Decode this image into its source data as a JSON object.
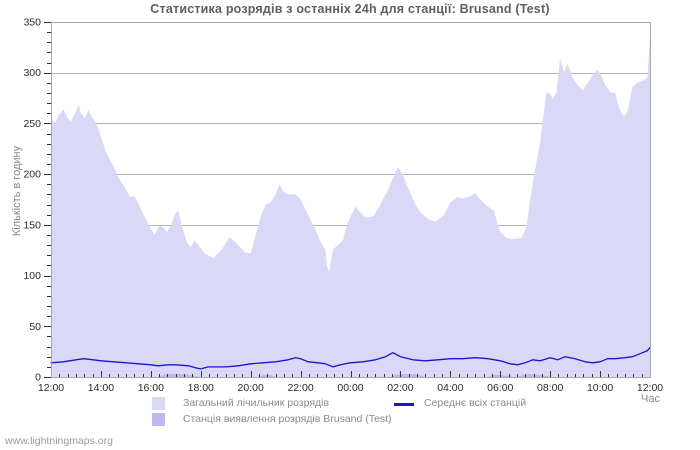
{
  "page": {
    "watermark": "www.lightningmaps.org"
  },
  "chart_data": {
    "type": "area",
    "title": "Статистика розрядів з останніх 24h для станції: Brusand (Test)",
    "xlabel": "Час",
    "ylabel": "Кількість в годину",
    "ylim": [
      0,
      350
    ],
    "xlim_hours": [
      0,
      24
    ],
    "x_unit": "hours since 12:00 (axis spans 24 h, 12:00 to 12:00)",
    "yticks": [
      0,
      50,
      100,
      150,
      200,
      250,
      300,
      350
    ],
    "xticks": [
      "12:00",
      "14:00",
      "16:00",
      "18:00",
      "20:00",
      "22:00",
      "00:00",
      "02:00",
      "04:00",
      "06:00",
      "08:00",
      "10:00",
      "12:00"
    ],
    "grid": true,
    "legend_position": "bottom",
    "colors": {
      "grid": "#b4b4b4",
      "border": "#a9a9a9",
      "tick": "#333333",
      "tick_label": "#2b2b2b"
    },
    "series": [
      {
        "name": "Загальний лічильник розрядів",
        "type": "area",
        "color": "#d9d9f7",
        "points": [
          [
            0,
            256
          ],
          [
            0.15,
            250
          ],
          [
            0.3,
            258
          ],
          [
            0.5,
            264
          ],
          [
            0.65,
            256
          ],
          [
            0.8,
            252
          ],
          [
            1.0,
            262
          ],
          [
            1.1,
            269
          ],
          [
            1.2,
            260
          ],
          [
            1.35,
            255
          ],
          [
            1.5,
            263
          ],
          [
            1.65,
            256
          ],
          [
            1.8,
            251
          ],
          [
            2.0,
            237
          ],
          [
            2.2,
            222
          ],
          [
            2.5,
            208
          ],
          [
            2.75,
            195
          ],
          [
            3.0,
            185
          ],
          [
            3.15,
            178
          ],
          [
            3.35,
            178
          ],
          [
            3.5,
            171
          ],
          [
            3.75,
            158
          ],
          [
            4.0,
            146
          ],
          [
            4.15,
            140
          ],
          [
            4.35,
            150
          ],
          [
            4.5,
            147
          ],
          [
            4.65,
            143
          ],
          [
            4.85,
            152
          ],
          [
            5.0,
            162
          ],
          [
            5.1,
            164
          ],
          [
            5.25,
            148
          ],
          [
            5.45,
            133
          ],
          [
            5.6,
            128
          ],
          [
            5.75,
            135
          ],
          [
            5.9,
            130
          ],
          [
            6.15,
            122
          ],
          [
            6.5,
            117
          ],
          [
            6.85,
            126
          ],
          [
            7.15,
            138
          ],
          [
            7.35,
            134
          ],
          [
            7.5,
            130
          ],
          [
            7.75,
            123
          ],
          [
            8.0,
            122
          ],
          [
            8.2,
            140
          ],
          [
            8.4,
            158
          ],
          [
            8.6,
            170
          ],
          [
            8.8,
            172
          ],
          [
            9.0,
            180
          ],
          [
            9.15,
            190
          ],
          [
            9.3,
            183
          ],
          [
            9.5,
            180
          ],
          [
            9.8,
            180
          ],
          [
            10.0,
            175
          ],
          [
            10.2,
            165
          ],
          [
            10.4,
            155
          ],
          [
            10.6,
            145
          ],
          [
            10.8,
            133
          ],
          [
            11.0,
            125
          ],
          [
            11.05,
            110
          ],
          [
            11.15,
            104
          ],
          [
            11.3,
            126
          ],
          [
            11.5,
            130
          ],
          [
            11.7,
            135
          ],
          [
            11.85,
            150
          ],
          [
            12.0,
            158
          ],
          [
            12.2,
            168
          ],
          [
            12.4,
            162
          ],
          [
            12.6,
            157
          ],
          [
            12.9,
            158
          ],
          [
            13.1,
            166
          ],
          [
            13.5,
            184
          ],
          [
            13.7,
            196
          ],
          [
            13.9,
            207
          ],
          [
            14.1,
            199
          ],
          [
            14.35,
            184
          ],
          [
            14.6,
            170
          ],
          [
            14.85,
            161
          ],
          [
            15.1,
            156
          ],
          [
            15.4,
            153
          ],
          [
            15.75,
            160
          ],
          [
            16.0,
            172
          ],
          [
            16.25,
            177
          ],
          [
            16.5,
            176
          ],
          [
            16.75,
            178
          ],
          [
            17.0,
            181
          ],
          [
            17.2,
            175
          ],
          [
            17.5,
            168
          ],
          [
            17.75,
            164
          ],
          [
            17.9,
            150
          ],
          [
            18.0,
            143
          ],
          [
            18.25,
            137
          ],
          [
            18.5,
            136
          ],
          [
            18.85,
            137
          ],
          [
            19.05,
            148
          ],
          [
            19.2,
            175
          ],
          [
            19.4,
            205
          ],
          [
            19.6,
            232
          ],
          [
            19.85,
            281
          ],
          [
            20.0,
            279
          ],
          [
            20.1,
            274
          ],
          [
            20.25,
            280
          ],
          [
            20.4,
            314
          ],
          [
            20.55,
            301
          ],
          [
            20.7,
            309
          ],
          [
            20.9,
            295
          ],
          [
            21.1,
            288
          ],
          [
            21.3,
            283
          ],
          [
            21.5,
            290
          ],
          [
            21.7,
            298
          ],
          [
            21.9,
            303
          ],
          [
            22.05,
            297
          ],
          [
            22.2,
            288
          ],
          [
            22.4,
            281
          ],
          [
            22.6,
            280
          ],
          [
            22.75,
            266
          ],
          [
            22.95,
            256
          ],
          [
            23.1,
            262
          ],
          [
            23.3,
            286
          ],
          [
            23.5,
            290
          ],
          [
            23.75,
            292
          ],
          [
            23.9,
            296
          ],
          [
            24,
            338
          ]
        ]
      },
      {
        "name": "Станція виявлення розрядів Brusand (Test)",
        "type": "area",
        "color": "#b9b9ef",
        "points": [
          [
            0,
            0
          ],
          [
            4.3,
            0
          ],
          [
            4.5,
            2
          ],
          [
            4.8,
            3
          ],
          [
            5.2,
            3
          ],
          [
            5.5,
            2
          ],
          [
            5.8,
            1
          ],
          [
            5.95,
            0
          ],
          [
            8.3,
            0
          ],
          [
            8.5,
            2
          ],
          [
            8.8,
            2
          ],
          [
            9.0,
            0
          ],
          [
            13.6,
            0
          ],
          [
            13.8,
            2
          ],
          [
            14.1,
            3
          ],
          [
            14.5,
            3
          ],
          [
            14.8,
            2
          ],
          [
            14.95,
            0
          ],
          [
            17.5,
            0
          ],
          [
            17.7,
            2
          ],
          [
            18.0,
            2
          ],
          [
            18.35,
            1
          ],
          [
            18.55,
            0
          ],
          [
            18.7,
            0
          ],
          [
            18.9,
            2
          ],
          [
            19.2,
            3
          ],
          [
            19.6,
            2
          ],
          [
            19.9,
            1
          ],
          [
            20.05,
            0
          ],
          [
            24,
            0
          ]
        ]
      },
      {
        "name": "Середнє всіх станцій",
        "type": "line",
        "color": "#1616cd",
        "points": [
          [
            0,
            14
          ],
          [
            0.5,
            15
          ],
          [
            1,
            17
          ],
          [
            1.3,
            18
          ],
          [
            1.7,
            17
          ],
          [
            2,
            16
          ],
          [
            2.5,
            15
          ],
          [
            3,
            14
          ],
          [
            3.5,
            13
          ],
          [
            4,
            12
          ],
          [
            4.3,
            11
          ],
          [
            4.7,
            12
          ],
          [
            5,
            12
          ],
          [
            5.5,
            11
          ],
          [
            5.8,
            9
          ],
          [
            6,
            8
          ],
          [
            6.3,
            10
          ],
          [
            6.7,
            10
          ],
          [
            7,
            10
          ],
          [
            7.5,
            11
          ],
          [
            8,
            13
          ],
          [
            8.5,
            14
          ],
          [
            9,
            15
          ],
          [
            9.5,
            17
          ],
          [
            9.8,
            19
          ],
          [
            10,
            18
          ],
          [
            10.3,
            15
          ],
          [
            10.7,
            14
          ],
          [
            11,
            13
          ],
          [
            11.3,
            10
          ],
          [
            11.6,
            12
          ],
          [
            12,
            14
          ],
          [
            12.5,
            15
          ],
          [
            13,
            17
          ],
          [
            13.4,
            20
          ],
          [
            13.7,
            24
          ],
          [
            14,
            20
          ],
          [
            14.5,
            17
          ],
          [
            15,
            16
          ],
          [
            15.5,
            17
          ],
          [
            16,
            18
          ],
          [
            16.5,
            18
          ],
          [
            17,
            19
          ],
          [
            17.5,
            18
          ],
          [
            18,
            16
          ],
          [
            18.4,
            13
          ],
          [
            18.7,
            12
          ],
          [
            19,
            14
          ],
          [
            19.3,
            17
          ],
          [
            19.6,
            16
          ],
          [
            20,
            19
          ],
          [
            20.3,
            17
          ],
          [
            20.6,
            20
          ],
          [
            21,
            18
          ],
          [
            21.4,
            15
          ],
          [
            21.7,
            14
          ],
          [
            22,
            15
          ],
          [
            22.3,
            18
          ],
          [
            22.6,
            18
          ],
          [
            23,
            19
          ],
          [
            23.3,
            20
          ],
          [
            23.6,
            23
          ],
          [
            23.9,
            26
          ],
          [
            24,
            29
          ]
        ]
      }
    ]
  }
}
